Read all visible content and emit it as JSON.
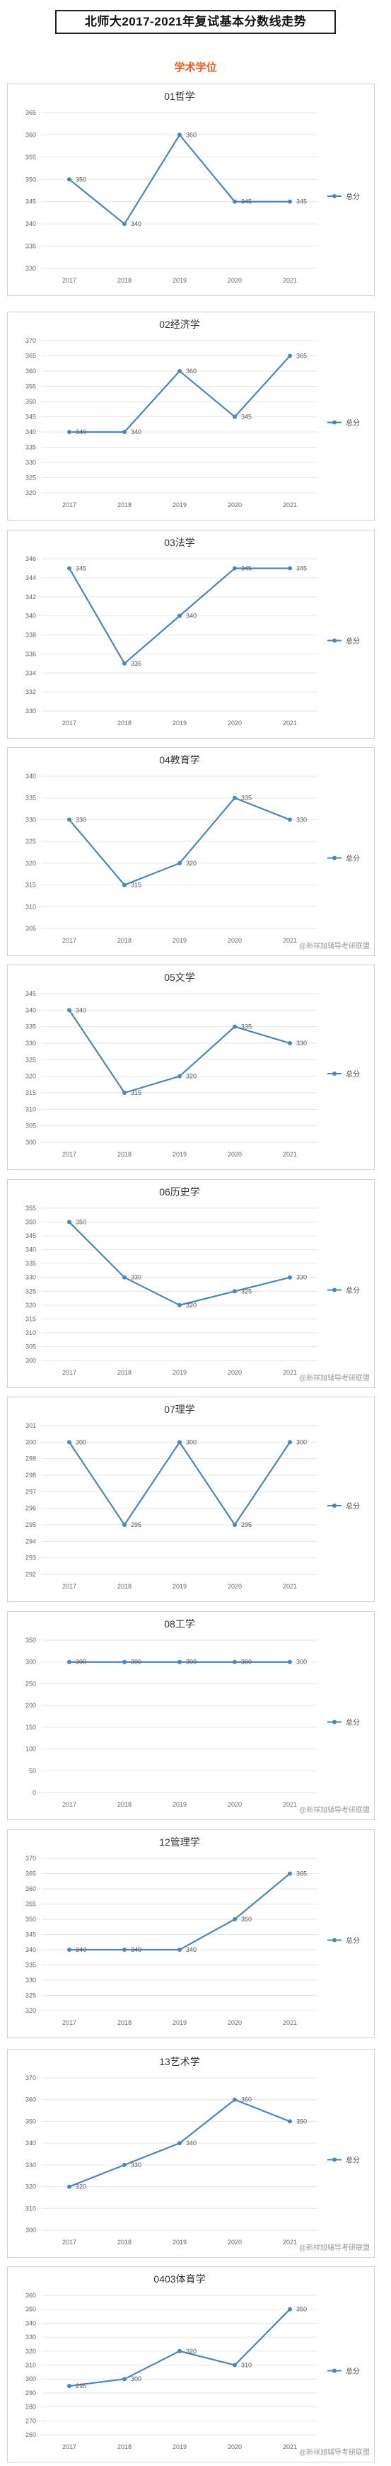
{
  "page": {
    "title": "北师大2017-2021年复试基本分数线走势",
    "section_label": "学术学位",
    "watermark": "@新祥旭辅导考研联盟",
    "accent_color": "#4a86c0",
    "section_color": "#ee5a1a"
  },
  "chart_data": [
    {
      "type": "line",
      "title": "01哲学",
      "categories": [
        "2017",
        "2018",
        "2019",
        "2020",
        "2021"
      ],
      "series": [
        {
          "name": "总分",
          "values": [
            350,
            340,
            360,
            345,
            345
          ]
        }
      ],
      "yticks": [
        330,
        335,
        340,
        345,
        350,
        355,
        360,
        365
      ],
      "ylim": [
        330,
        365
      ],
      "watermark": false
    },
    {
      "type": "line",
      "title": "02经济学",
      "categories": [
        "2017",
        "2018",
        "2019",
        "2020",
        "2021"
      ],
      "series": [
        {
          "name": "总分",
          "values": [
            340,
            340,
            360,
            345,
            365
          ]
        }
      ],
      "yticks": [
        320,
        325,
        330,
        335,
        340,
        345,
        350,
        355,
        360,
        365,
        370
      ],
      "ylim": [
        320,
        370
      ],
      "watermark": false
    },
    {
      "type": "line",
      "title": "03法学",
      "categories": [
        "2017",
        "2018",
        "2019",
        "2020",
        "2021"
      ],
      "series": [
        {
          "name": "总分",
          "values": [
            345,
            335,
            340,
            345,
            345
          ]
        }
      ],
      "yticks": [
        330,
        332,
        334,
        336,
        338,
        340,
        342,
        344,
        346
      ],
      "ylim": [
        330,
        346
      ],
      "watermark": false
    },
    {
      "type": "line",
      "title": "04教育学",
      "categories": [
        "2017",
        "2018",
        "2019",
        "2020",
        "2021"
      ],
      "series": [
        {
          "name": "总分",
          "values": [
            330,
            315,
            320,
            335,
            330
          ]
        }
      ],
      "yticks": [
        305,
        310,
        315,
        320,
        325,
        330,
        335,
        340
      ],
      "ylim": [
        305,
        340
      ],
      "watermark": true
    },
    {
      "type": "line",
      "title": "05文学",
      "categories": [
        "2017",
        "2018",
        "2019",
        "2020",
        "2021"
      ],
      "series": [
        {
          "name": "总分",
          "values": [
            340,
            315,
            320,
            335,
            330
          ]
        }
      ],
      "yticks": [
        300,
        305,
        310,
        315,
        320,
        325,
        330,
        335,
        340,
        345
      ],
      "ylim": [
        300,
        345
      ],
      "watermark": false
    },
    {
      "type": "line",
      "title": "06历史学",
      "categories": [
        "2017",
        "2018",
        "2019",
        "2020",
        "2021"
      ],
      "series": [
        {
          "name": "总分",
          "values": [
            350,
            330,
            320,
            325,
            330
          ]
        }
      ],
      "yticks": [
        300,
        305,
        310,
        315,
        320,
        325,
        330,
        335,
        340,
        345,
        350,
        355
      ],
      "ylim": [
        300,
        355
      ],
      "watermark": true
    },
    {
      "type": "line",
      "title": "07理学",
      "categories": [
        "2017",
        "2018",
        "2019",
        "2020",
        "2021"
      ],
      "series": [
        {
          "name": "总分",
          "values": [
            300,
            295,
            300,
            295,
            300
          ]
        }
      ],
      "yticks": [
        292,
        293,
        294,
        295,
        296,
        297,
        298,
        299,
        300,
        301
      ],
      "ylim": [
        292,
        301
      ],
      "watermark": false
    },
    {
      "type": "line",
      "title": "08工学",
      "categories": [
        "2017",
        "2018",
        "2019",
        "2020",
        "2021"
      ],
      "series": [
        {
          "name": "总分",
          "values": [
            300,
            300,
            300,
            300,
            300
          ]
        }
      ],
      "yticks": [
        0,
        50,
        100,
        150,
        200,
        250,
        300,
        350
      ],
      "ylim": [
        0,
        350
      ],
      "watermark": true
    },
    {
      "type": "line",
      "title": "12管理学",
      "categories": [
        "2017",
        "2018",
        "2019",
        "2020",
        "2021"
      ],
      "series": [
        {
          "name": "总分",
          "values": [
            340,
            340,
            340,
            350,
            365
          ]
        }
      ],
      "yticks": [
        320,
        325,
        330,
        335,
        340,
        345,
        350,
        355,
        360,
        365,
        370
      ],
      "ylim": [
        320,
        370
      ],
      "watermark": false
    },
    {
      "type": "line",
      "title": "13艺术学",
      "categories": [
        "2017",
        "2018",
        "2019",
        "2020",
        "2021"
      ],
      "series": [
        {
          "name": "总分",
          "values": [
            320,
            330,
            340,
            360,
            350
          ]
        }
      ],
      "yticks": [
        300,
        310,
        320,
        330,
        340,
        350,
        360,
        370
      ],
      "ylim": [
        300,
        370
      ],
      "watermark": true
    },
    {
      "type": "line",
      "title": "0403体育学",
      "categories": [
        "2017",
        "2018",
        "2019",
        "2020",
        "2021"
      ],
      "series": [
        {
          "name": "总分",
          "values": [
            295,
            300,
            320,
            310,
            350
          ]
        }
      ],
      "yticks": [
        260,
        270,
        280,
        290,
        300,
        310,
        320,
        330,
        340,
        350,
        360
      ],
      "ylim": [
        260,
        360
      ],
      "watermark": true
    }
  ]
}
